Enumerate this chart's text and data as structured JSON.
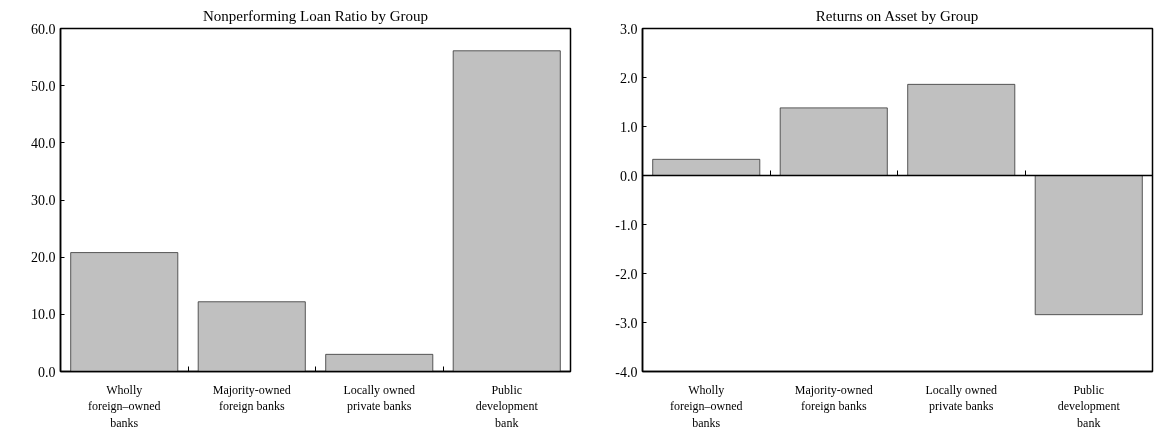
{
  "chart_data": [
    {
      "type": "bar",
      "title": "Nonperforming Loan Ratio by Group",
      "categories": [
        "Wholly foreign–owned banks",
        "Majority-owned foreign banks",
        "Locally owned private banks",
        "Public development bank"
      ],
      "values": [
        20.8,
        12.2,
        3.0,
        56.1
      ],
      "color": "#c0c0c0",
      "ylim": [
        0,
        60
      ],
      "yticks": [
        {
          "value": 0,
          "label": "0.0"
        },
        {
          "value": 10,
          "label": "10.0"
        },
        {
          "value": 20,
          "label": "20.0"
        },
        {
          "value": 30,
          "label": "30.0"
        },
        {
          "value": 40,
          "label": "40.0"
        },
        {
          "value": 50,
          "label": "50.0"
        },
        {
          "value": 60,
          "label": "60.0"
        }
      ],
      "grid": false
    },
    {
      "type": "bar",
      "title": "Returns on Asset by Group",
      "categories": [
        "Wholly foreign–owned banks",
        "Majority-owned foreign banks",
        "Locally owned private banks",
        "Public development bank"
      ],
      "values": [
        0.33,
        1.38,
        1.86,
        -2.84
      ],
      "color": "#c0c0c0",
      "ylim": [
        -4,
        3
      ],
      "yticks": [
        {
          "value": -4,
          "label": "-4.0"
        },
        {
          "value": -3,
          "label": "-3.0"
        },
        {
          "value": -2,
          "label": "-2.0"
        },
        {
          "value": -1,
          "label": "-1.0"
        },
        {
          "value": 0,
          "label": "0.0"
        },
        {
          "value": 1,
          "label": "1.0"
        },
        {
          "value": 2,
          "label": "2.0"
        },
        {
          "value": 3,
          "label": "3.0"
        }
      ],
      "grid": false,
      "ref_lines": [
        {
          "axis": "y",
          "value": 0
        }
      ]
    }
  ]
}
